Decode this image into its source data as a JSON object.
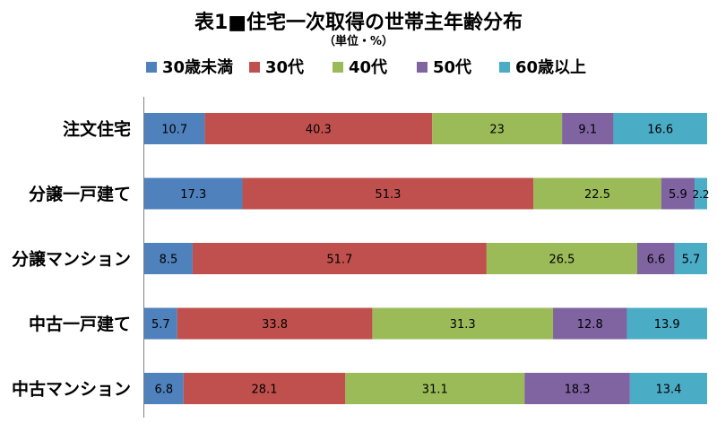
{
  "chart_data": {
    "type": "bar",
    "orientation": "horizontal",
    "stacked": true,
    "title": "表1■住宅一次取得の世帯主年齢分布",
    "subtitle": "（単位・%）",
    "categories": [
      "注文住宅",
      "分譲一戸建て",
      "分譲マンション",
      "中古一戸建て",
      "中古マンション"
    ],
    "series": [
      {
        "name": "30歳未満",
        "color": "#4F81BD",
        "values": [
          10.7,
          17.3,
          8.5,
          5.7,
          6.8
        ]
      },
      {
        "name": "30代",
        "color": "#C0504D",
        "values": [
          40.3,
          51.3,
          51.7,
          33.8,
          28.1
        ]
      },
      {
        "name": "40代",
        "color": "#9BBB59",
        "values": [
          23,
          22.5,
          26.5,
          31.3,
          31.1
        ]
      },
      {
        "name": "50代",
        "color": "#8064A2",
        "values": [
          9.1,
          5.9,
          6.6,
          12.8,
          18.3
        ]
      },
      {
        "name": "60歳以上",
        "color": "#4BACC6",
        "values": [
          16.6,
          2.2,
          5.7,
          13.9,
          13.4
        ]
      }
    ],
    "legend_position": "top",
    "grid": false
  }
}
